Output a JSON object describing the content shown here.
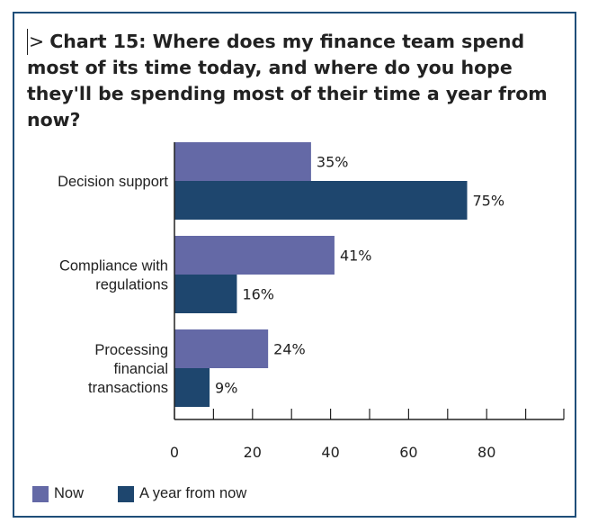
{
  "chart_data": {
    "type": "bar",
    "orientation": "horizontal",
    "title_marker": ">",
    "title": "Chart 15: Where does my finance team spend most of its time today, and where do you hope they'll be spending most of their time a year from now?",
    "categories": [
      [
        "Decision support"
      ],
      [
        "Compliance with",
        "regulations"
      ],
      [
        "Processing",
        "financial",
        "transactions"
      ]
    ],
    "series": [
      {
        "name": "Now",
        "values": [
          35,
          41,
          24
        ],
        "labels": [
          "35%",
          "41%",
          "24%"
        ],
        "color": "#6469a6"
      },
      {
        "name": "A year from now",
        "values": [
          75,
          16,
          9
        ],
        "labels": [
          "75%",
          "16%",
          "9%"
        ],
        "color": "#1e466e"
      }
    ],
    "xlim": [
      0,
      100
    ],
    "xticks": [
      0,
      20,
      40,
      60,
      80
    ],
    "xticklabels": [
      "0",
      "20",
      "40",
      "60",
      "80"
    ],
    "grid": false,
    "legend_position": "bottom-left",
    "axis_color": "#222222"
  }
}
